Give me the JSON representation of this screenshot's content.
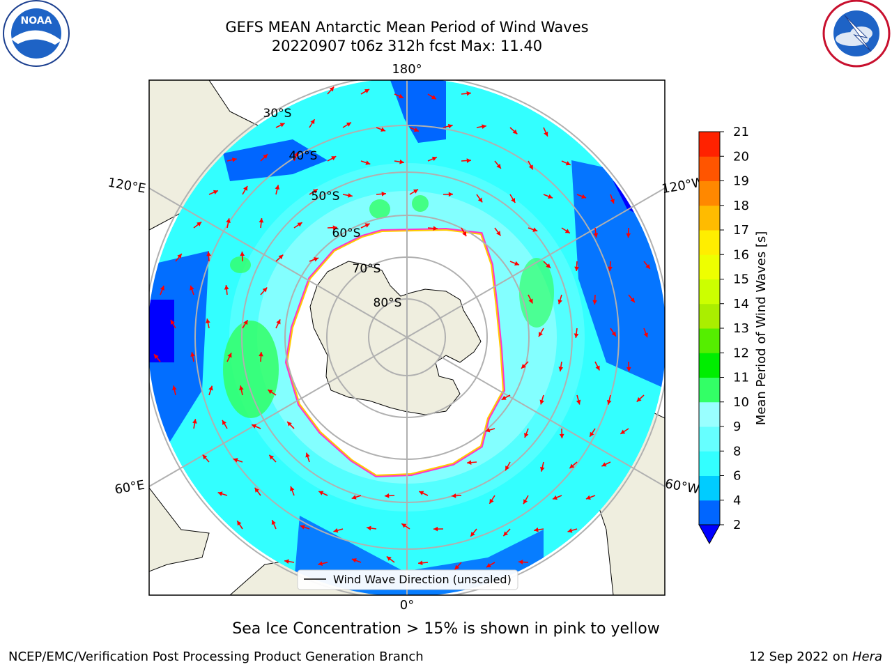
{
  "title": {
    "line1": "GEFS MEAN Antarctic Mean Period of Wind Waves",
    "line2": "20220907 t06z 312h fcst   Max: 11.40"
  },
  "logos": {
    "left": {
      "text": "NOAA",
      "ring_text": "NATIONAL OCEANIC AND ATMOSPHERIC ADMINISTRATION · U.S. DEPARTMENT OF COMMERCE"
    },
    "right": {
      "ring_text": "NATIONAL WEATHER SERVICE"
    }
  },
  "map": {
    "projection": "south-polar-stereographic",
    "longitude_labels": [
      "180°",
      "120°E",
      "120°W",
      "60°E",
      "60°W",
      "0°"
    ],
    "latitude_labels": [
      "30°S",
      "40°S",
      "50°S",
      "60°S",
      "70°S",
      "80°S"
    ],
    "legend_label": "Wind Wave Direction (unscaled)",
    "arrow_color": "#ff0000",
    "land_color": "#efeedf",
    "sea_ice_colors": [
      "#ff33cc",
      "#ffcc00"
    ]
  },
  "colorbar": {
    "label": "Mean Period of Wind Waves [s]",
    "ticks": [
      "2",
      "4",
      "6",
      "8",
      "9",
      "10",
      "11",
      "12",
      "13",
      "14",
      "15",
      "16",
      "17",
      "18",
      "19",
      "20",
      "21"
    ],
    "colors": [
      "#0066ff",
      "#00ccff",
      "#33ffff",
      "#66ffff",
      "#99ffff",
      "#33ff66",
      "#00ee00",
      "#55ee00",
      "#aaee00",
      "#ccff00",
      "#eeff00",
      "#ffee00",
      "#ffbb00",
      "#ff8800",
      "#ff5500",
      "#ff2200"
    ],
    "extend_color": "#0000ff"
  },
  "caption": "Sea Ice Concentration > 15% is shown in pink to yellow",
  "footer": {
    "left": "NCEP/EMC/Verification Post Processing Product Generation Branch",
    "right_date": "12 Sep 2022 on ",
    "right_host": "Hera"
  }
}
